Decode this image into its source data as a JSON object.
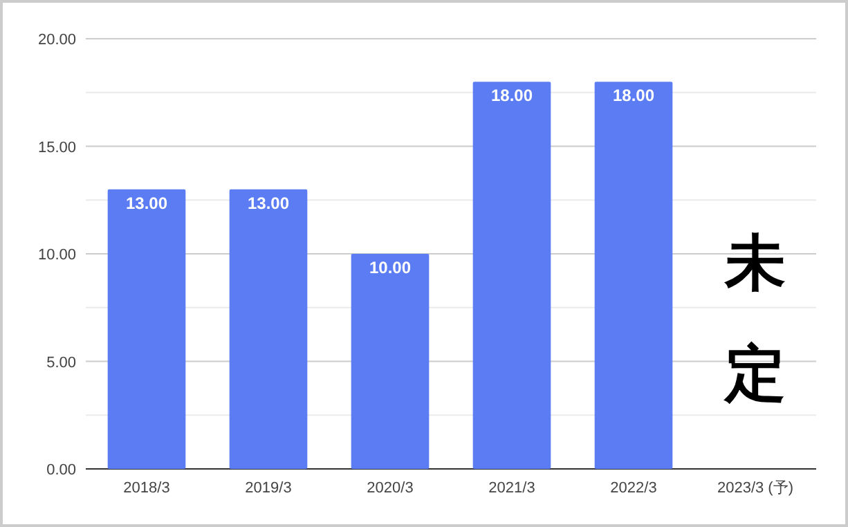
{
  "chart_data": {
    "type": "bar",
    "categories": [
      "2018/3",
      "2019/3",
      "2020/3",
      "2021/3",
      "2022/3",
      "2023/3 (予)"
    ],
    "values": [
      13,
      13,
      10,
      18,
      18,
      null
    ],
    "value_labels": [
      "13.00",
      "13.00",
      "10.00",
      "18.00",
      "18.00",
      null
    ],
    "color": "#5b7cf2",
    "ylim": [
      0,
      20
    ],
    "yticks": [
      {
        "value": 0,
        "label": "0.00"
      },
      {
        "value": 2.5,
        "label": null
      },
      {
        "value": 5,
        "label": "5.00"
      },
      {
        "value": 7.5,
        "label": null
      },
      {
        "value": 10,
        "label": "10.00"
      },
      {
        "value": 12.5,
        "label": null
      },
      {
        "value": 15,
        "label": "15.00"
      },
      {
        "value": 17.5,
        "label": null
      },
      {
        "value": 20,
        "label": "20.00"
      }
    ],
    "grid": "y",
    "annotations": [
      "未定"
    ]
  }
}
